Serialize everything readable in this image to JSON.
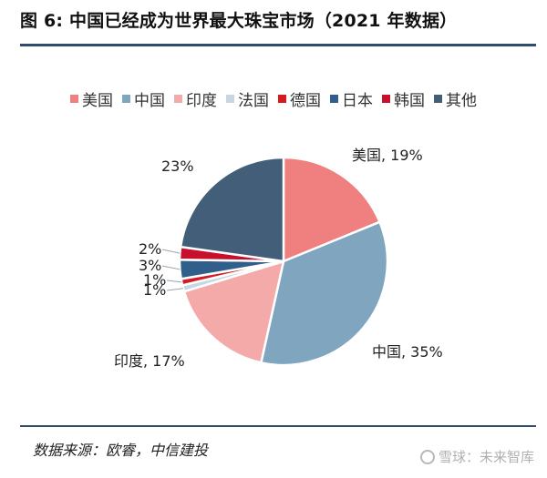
{
  "header": {
    "title": "图 6: 中国已经成为世界最大珠宝市场（2021 年数据）"
  },
  "footer": {
    "source": "数据来源：欧睿，中信建投",
    "watermark": "雪球：未来智库"
  },
  "colors": {
    "rule": "#2f4d68",
    "美国": "#f07f7f",
    "中国": "#7fa5bf",
    "印度": "#f5aaaa",
    "法国": "#c6d6e2",
    "德国": "#d71920",
    "日本": "#2f5f8a",
    "韩国": "#c8102e",
    "其他": "#425e78"
  },
  "chart_data": {
    "type": "pie",
    "title": "",
    "legend_position": "top",
    "legend": [
      "美国",
      "中国",
      "印度",
      "法国",
      "德国",
      "日本",
      "韩国",
      "其他"
    ],
    "slices": [
      {
        "name": "美国",
        "value": 19,
        "label": "美国, 19%"
      },
      {
        "name": "中国",
        "value": 35,
        "label": "中国, 35%"
      },
      {
        "name": "印度",
        "value": 17,
        "label": "印度, 17%"
      },
      {
        "name": "法国",
        "value": 1,
        "label": "1%"
      },
      {
        "name": "德国",
        "value": 1,
        "label": "1%"
      },
      {
        "name": "日本",
        "value": 3,
        "label": "3%"
      },
      {
        "name": "韩国",
        "value": 2,
        "label": "2%"
      },
      {
        "name": "其他",
        "value": 23,
        "label": "23%"
      }
    ]
  }
}
